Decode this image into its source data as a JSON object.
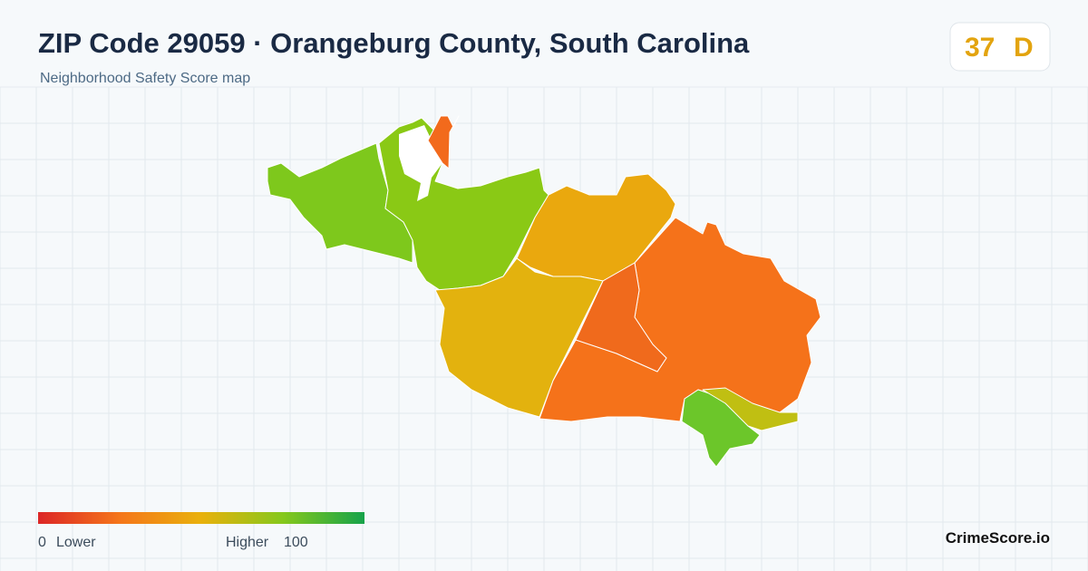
{
  "header": {
    "title": "ZIP Code 29059 · Orangeburg County, South Carolina",
    "subtitle": "Neighborhood Safety Score map"
  },
  "score": {
    "value": 37,
    "grade": "D"
  },
  "legend": {
    "min": 0,
    "min_label": "Lower",
    "max_label": "Higher",
    "max": 100
  },
  "brand": "CrimeScore.io"
}
